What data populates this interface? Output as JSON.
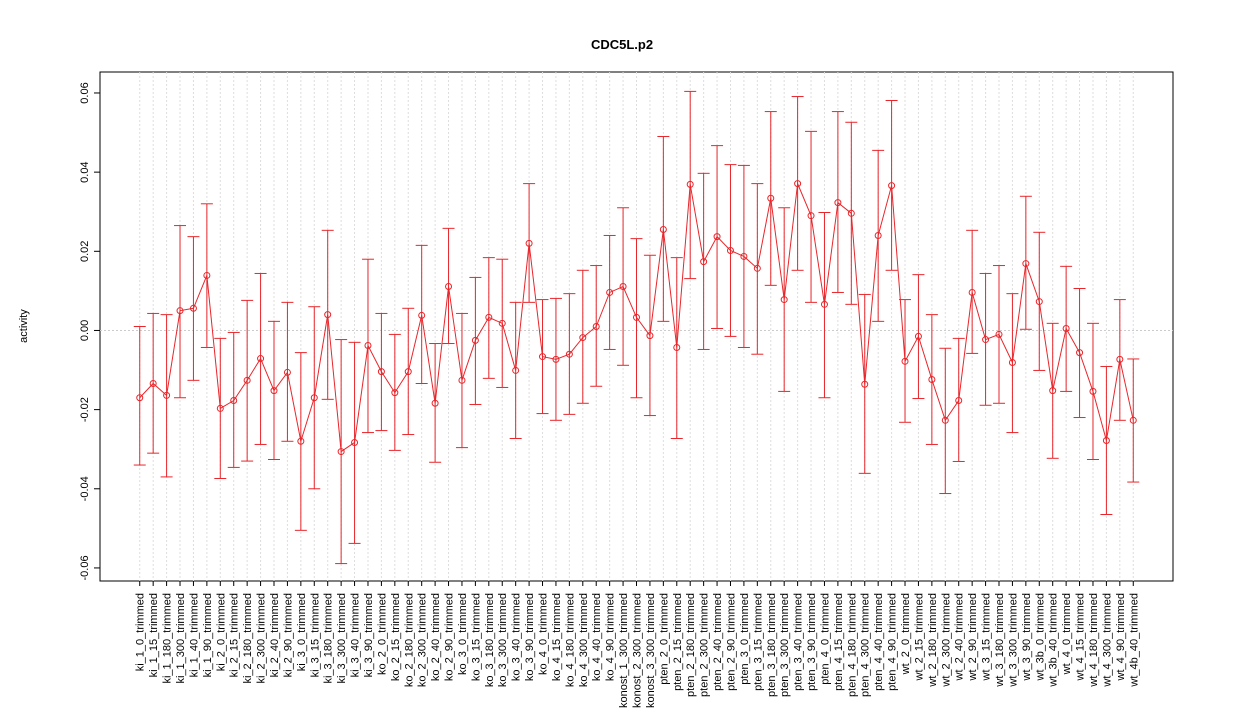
{
  "chart_data": {
    "type": "errorbar",
    "title": "CDC5L.p2",
    "ylabel": "activity",
    "color": "#e8262b",
    "categories": [
      "ki_1_0_trimmed",
      "ki_1_15_trimmed",
      "ki_1_180_trimmed",
      "ki_1_300_trimmed",
      "ki_1_40_trimmed",
      "ki_1_90_trimmed",
      "ki_2_0_trimmed",
      "ki_2_15_trimmed",
      "ki_2_180_trimmed",
      "ki_2_300_trimmed",
      "ki_2_40_trimmed",
      "ki_2_90_trimmed",
      "ki_3_0_trimmed",
      "ki_3_15_trimmed",
      "ki_3_180_trimmed",
      "ki_3_300_trimmed",
      "ki_3_40_trimmed",
      "ki_3_90_trimmed",
      "ko_2_0_trimmed",
      "ko_2_15_trimmed",
      "ko_2_180_trimmed",
      "ko_2_300_trimmed",
      "ko_2_40_trimmed",
      "ko_2_90_trimmed",
      "ko_3_0_trimmed",
      "ko_3_15_trimmed",
      "ko_3_180_trimmed",
      "ko_3_300_trimmed",
      "ko_3_40_trimmed",
      "ko_3_90_trimmed",
      "ko_4_0_trimmed",
      "ko_4_15_trimmed",
      "ko_4_180_trimmed",
      "ko_4_300_trimmed",
      "ko_4_40_trimmed",
      "ko_4_90_trimmed",
      "konost_1_300_trimmed",
      "konost_2_300_trimmed",
      "konost_3_300_trimmed",
      "pten_2_0_trimmed",
      "pten_2_15_trimmed",
      "pten_2_180_trimmed",
      "pten_2_300_trimmed",
      "pten_2_40_trimmed",
      "pten_2_90_trimmed",
      "pten_3_0_trimmed",
      "pten_3_15_trimmed",
      "pten_3_180_trimmed",
      "pten_3_300_trimmed",
      "pten_3_40_trimmed",
      "pten_3_90_trimmed",
      "pten_4_0_trimmed",
      "pten_4_15_trimmed",
      "pten_4_180_trimmed",
      "pten_4_300_trimmed",
      "pten_4_40_trimmed",
      "pten_4_90_trimmed",
      "wt_2_0_trimmed",
      "wt_2_15_trimmed",
      "wt_2_180_trimmed",
      "wt_2_300_trimmed",
      "wt_2_40_trimmed",
      "wt_2_90_trimmed",
      "wt_3_15_trimmed",
      "wt_3_180_trimmed",
      "wt_3_300_trimmed",
      "wt_3_90_trimmed",
      "wt_3b_0_trimmed",
      "wt_3b_40_trimmed",
      "wt_4_0_trimmed",
      "wt_4_15_trimmed",
      "wt_4_180_trimmed",
      "wt_4_300_trimmed",
      "wt_4_90_trimmed",
      "wt_4b_40_trimmed"
    ],
    "values": [
      -0.017,
      -0.0134,
      -0.0164,
      0.005,
      0.0056,
      0.0139,
      -0.0197,
      -0.0177,
      -0.0126,
      -0.0071,
      -0.0152,
      -0.0106,
      -0.028,
      -0.017,
      0.004,
      -0.0306,
      -0.0283,
      -0.0038,
      -0.0104,
      -0.0157,
      -0.0104,
      0.0038,
      -0.0184,
      0.0111,
      -0.0126,
      -0.0025,
      0.0033,
      0.0018,
      -0.0101,
      0.022,
      -0.0066,
      -0.0073,
      -0.006,
      -0.0018,
      0.001,
      0.0096,
      0.0111,
      0.0033,
      -0.0013,
      0.0255,
      -0.0043,
      0.0369,
      0.0174,
      0.0237,
      0.0202,
      0.0187,
      0.0157,
      0.0334,
      0.0078,
      0.0371,
      0.029,
      0.0066,
      0.0323,
      0.0296,
      -0.0136,
      0.024,
      0.0366,
      -0.0078,
      -0.0015,
      -0.0124,
      -0.0227,
      -0.0177,
      0.0096,
      -0.0023,
      -0.001,
      -0.0081,
      0.0169,
      0.0073,
      -0.0152,
      0.0005,
      -0.0056,
      -0.0154,
      -0.0278,
      -0.0073,
      -0.0227
    ],
    "upper": [
      0.001,
      0.0043,
      0.004,
      0.0265,
      0.0237,
      0.032,
      -0.002,
      -0.0005,
      0.0076,
      0.0144,
      0.0023,
      0.0071,
      -0.0056,
      0.006,
      0.0253,
      -0.0023,
      -0.003,
      0.018,
      0.0043,
      -0.001,
      0.0056,
      0.0215,
      -0.0033,
      0.0258,
      0.0043,
      0.0134,
      0.0184,
      0.018,
      0.0071,
      0.0371,
      0.0078,
      0.0081,
      0.0093,
      0.0152,
      0.0164,
      0.024,
      0.031,
      0.0232,
      0.019,
      0.049,
      0.0184,
      0.0604,
      0.0397,
      0.0467,
      0.0419,
      0.0417,
      0.0371,
      0.0553,
      0.031,
      0.0591,
      0.0503,
      0.0298,
      0.0553,
      0.0526,
      0.0091,
      0.0455,
      0.0581,
      0.0078,
      0.0141,
      0.004,
      -0.0045,
      -0.002,
      0.0253,
      0.0144,
      0.0164,
      0.0093,
      0.0339,
      0.0248,
      0.0018,
      0.0162,
      0.0106,
      0.0018,
      -0.0091,
      0.0078,
      -0.0072
    ],
    "lower": [
      -0.034,
      -0.031,
      -0.037,
      -0.017,
      -0.0126,
      -0.0043,
      -0.0374,
      -0.0346,
      -0.033,
      -0.0288,
      -0.0326,
      -0.028,
      -0.0505,
      -0.04,
      -0.0174,
      -0.0589,
      -0.0538,
      -0.0258,
      -0.0253,
      -0.0303,
      -0.0263,
      -0.0134,
      -0.0333,
      -0.0033,
      -0.0296,
      -0.0187,
      -0.0121,
      -0.0144,
      -0.0273,
      0.0071,
      -0.021,
      -0.0227,
      -0.0212,
      -0.0184,
      -0.0141,
      -0.0048,
      -0.0088,
      -0.017,
      -0.0215,
      0.0023,
      -0.0273,
      0.0131,
      -0.0048,
      0.0005,
      -0.0015,
      -0.0043,
      -0.006,
      0.0114,
      -0.0154,
      0.0152,
      0.0071,
      -0.017,
      0.0096,
      0.0066,
      -0.0361,
      0.0023,
      0.0152,
      -0.0232,
      -0.0172,
      -0.0288,
      -0.0412,
      -0.0331,
      -0.0058,
      -0.0189,
      -0.0184,
      -0.0258,
      0.0003,
      -0.0101,
      -0.0323,
      -0.0154,
      -0.022,
      -0.0326,
      -0.0465,
      -0.0227,
      -0.0383
    ],
    "ylim": [
      -0.0633,
      0.0653
    ],
    "yticks": [
      -0.06,
      -0.04,
      -0.02,
      {
        "value": 0,
        "label": "0.00"
      },
      0.02,
      0.04,
      0.06
    ],
    "grid": true
  }
}
